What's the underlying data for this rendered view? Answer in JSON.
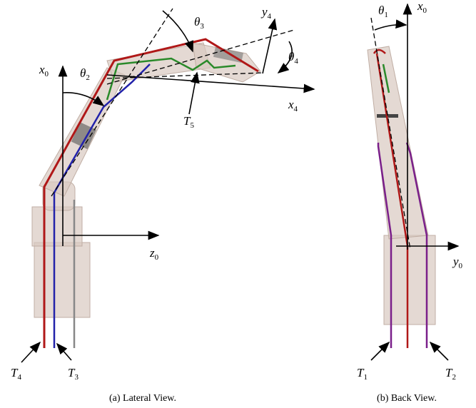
{
  "labels": {
    "theta1": {
      "symbol": "θ",
      "sub": "1"
    },
    "theta2": {
      "symbol": "θ",
      "sub": "2"
    },
    "theta3": {
      "symbol": "θ",
      "sub": "3"
    },
    "theta4": {
      "symbol": "θ",
      "sub": "4"
    },
    "x0_left": {
      "symbol": "x",
      "sub": "0"
    },
    "z0": {
      "symbol": "z",
      "sub": "0"
    },
    "y4": {
      "symbol": "y",
      "sub": "4"
    },
    "x4": {
      "symbol": "x",
      "sub": "4"
    },
    "T5": {
      "symbol": "T",
      "sub": "5"
    },
    "T4": {
      "symbol": "T",
      "sub": "4"
    },
    "T3": {
      "symbol": "T",
      "sub": "3"
    },
    "x0_right": {
      "symbol": "x",
      "sub": "0"
    },
    "y0": {
      "symbol": "y",
      "sub": "0"
    },
    "T1": {
      "symbol": "T",
      "sub": "1"
    },
    "T2": {
      "symbol": "T",
      "sub": "2"
    }
  },
  "captions": {
    "a": "(a) Lateral View.",
    "b": "(b) Back View."
  }
}
